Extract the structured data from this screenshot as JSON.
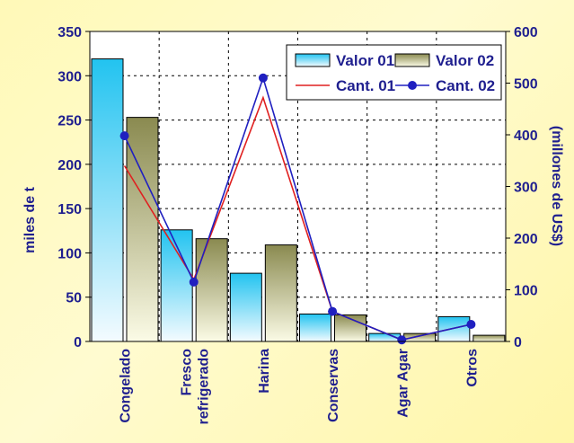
{
  "chart_data": {
    "type": "bar",
    "categories": [
      "Congelado",
      "Fresco refrigerado",
      "Harina",
      "Conservas",
      "Agar Agar",
      "Otros"
    ],
    "category_lines": [
      [
        "Congelado"
      ],
      [
        "Fresco",
        "refrigerado"
      ],
      [
        "Harina"
      ],
      [
        "Conservas"
      ],
      [
        "Agar Agar"
      ],
      [
        "Otros"
      ]
    ],
    "series": [
      {
        "name": "Valor 01",
        "kind": "bar",
        "axis": "left",
        "values": [
          319,
          126,
          77,
          31,
          9,
          28
        ]
      },
      {
        "name": "Valor 02",
        "kind": "bar",
        "axis": "left",
        "values": [
          253,
          116,
          109,
          30,
          9,
          7
        ]
      },
      {
        "name": "Cant. 01",
        "kind": "line",
        "axis": "right",
        "values": [
          340,
          120,
          472,
          58,
          3,
          33
        ]
      },
      {
        "name": "Cant. 02",
        "kind": "line-marker",
        "axis": "right",
        "values": [
          398,
          115,
          510,
          58,
          3,
          33
        ]
      }
    ],
    "ylabel": "miles de t",
    "y2label": "(millones de US$)",
    "ylim": [
      0,
      350
    ],
    "yticks": [
      0,
      50,
      100,
      150,
      200,
      250,
      300,
      350
    ],
    "y2lim": [
      0,
      600
    ],
    "y2ticks": [
      0,
      100,
      200,
      300,
      400,
      500,
      600
    ],
    "grid": true,
    "legend_position": "top-right",
    "colors": {
      "valor01_top": "#22c3f0",
      "valor01_bottom": "#f4fbff",
      "valor02_top": "#8a8a50",
      "valor02_bottom": "#fbfbe6",
      "cant01": "#e02020",
      "cant02": "#2020c0",
      "text": "#1f1f8f"
    }
  }
}
